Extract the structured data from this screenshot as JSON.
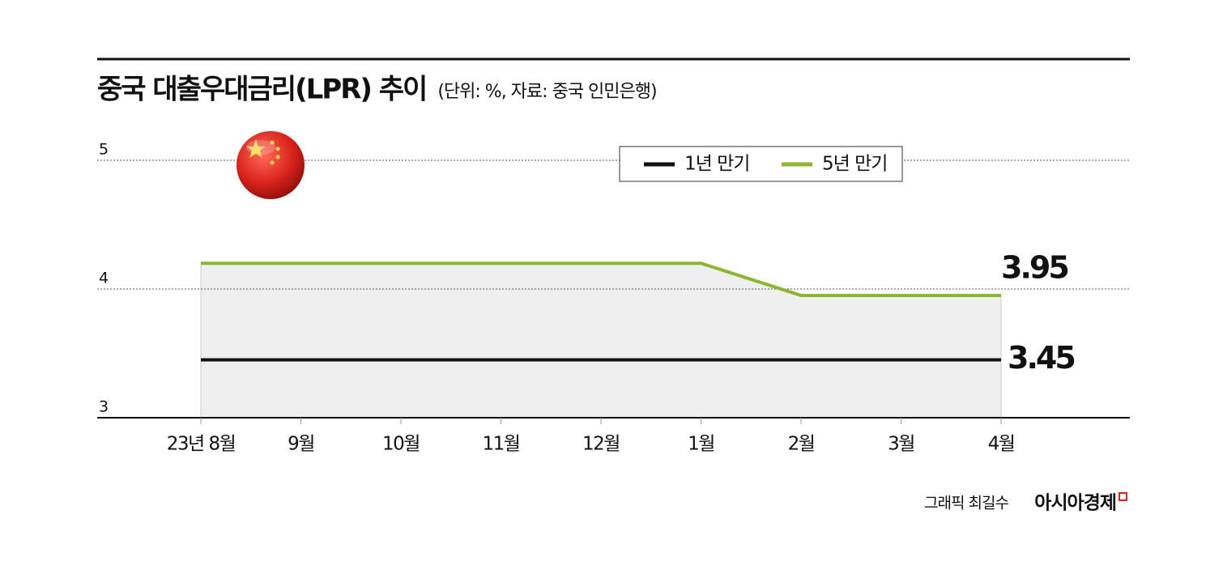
{
  "chart_data": {
    "type": "line",
    "title": "중국 대출우대금리(LPR) 추이",
    "subtitle": "(단위: %, 자료: 중국 인민은행)",
    "categories": [
      "23년 8월",
      "9월",
      "10월",
      "11월",
      "12월",
      "1월",
      "2월",
      "3월",
      "4월"
    ],
    "series": [
      {
        "name": "1년 만기",
        "color": "#111111",
        "values": [
          3.45,
          3.45,
          3.45,
          3.45,
          3.45,
          3.45,
          3.45,
          3.45,
          3.45
        ]
      },
      {
        "name": "5년 만기",
        "color": "#8db531",
        "values": [
          4.2,
          4.2,
          4.2,
          4.2,
          4.2,
          4.2,
          3.95,
          3.95,
          3.95
        ]
      }
    ],
    "ylim": [
      3,
      5
    ],
    "yticks": [
      3,
      4,
      5
    ],
    "grid": true,
    "credit": "그래픽 최길수",
    "publisher": "아시아경제"
  }
}
